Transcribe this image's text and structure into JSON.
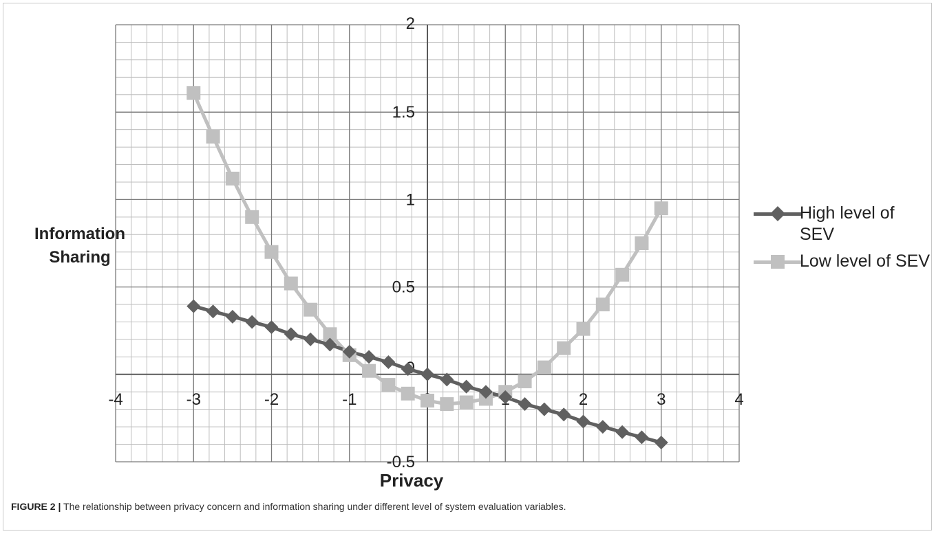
{
  "caption": {
    "label": "FIGURE 2 |",
    "text": " The relationship between privacy concern and information sharing under different level of system evaluation variables."
  },
  "chart_data": {
    "type": "line",
    "xlabel": "Privacy",
    "ylabel_line1": "Information",
    "ylabel_line2": "Sharing",
    "xlim": [
      -4,
      4
    ],
    "ylim": [
      -0.5,
      2
    ],
    "x_ticks": [
      "-4",
      "-3",
      "-2",
      "-1",
      "0",
      "1",
      "2",
      "3",
      "4"
    ],
    "y_ticks": [
      "-0.5",
      "0",
      "0.5",
      "1",
      "1.5",
      "2"
    ],
    "grid": true,
    "legend_position": "right",
    "series": [
      {
        "name": "High level of SEV",
        "color": "#606060",
        "marker": "diamond",
        "x": [
          -3,
          -2.75,
          -2.5,
          -2.25,
          -2,
          -1.75,
          -1.5,
          -1.25,
          -1,
          -0.75,
          -0.5,
          -0.25,
          0,
          0.25,
          0.5,
          0.75,
          1,
          1.25,
          1.5,
          1.75,
          2,
          2.25,
          2.5,
          2.75,
          3
        ],
        "y": [
          0.39,
          0.36,
          0.33,
          0.3,
          0.27,
          0.23,
          0.2,
          0.17,
          0.13,
          0.1,
          0.07,
          0.03,
          0.0,
          -0.03,
          -0.07,
          -0.1,
          -0.13,
          -0.17,
          -0.2,
          -0.23,
          -0.27,
          -0.3,
          -0.33,
          -0.36,
          -0.39
        ]
      },
      {
        "name": "Low level of SEV",
        "color": "#c0c0c0",
        "marker": "square",
        "x": [
          -3,
          -2.75,
          -2.5,
          -2.25,
          -2,
          -1.75,
          -1.5,
          -1.25,
          -1,
          -0.75,
          -0.5,
          -0.25,
          0,
          0.25,
          0.5,
          0.75,
          1,
          1.25,
          1.5,
          1.75,
          2,
          2.25,
          2.5,
          2.75,
          3
        ],
        "y": [
          1.61,
          1.36,
          1.12,
          0.9,
          0.7,
          0.52,
          0.37,
          0.23,
          0.11,
          0.02,
          -0.06,
          -0.11,
          -0.15,
          -0.17,
          -0.16,
          -0.14,
          -0.1,
          -0.04,
          0.04,
          0.15,
          0.26,
          0.4,
          0.57,
          0.75,
          0.95
        ]
      }
    ]
  }
}
